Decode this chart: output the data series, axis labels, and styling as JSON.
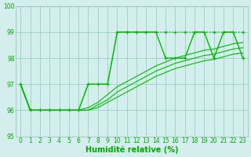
{
  "xlabel": "Humidité relative (%)",
  "xlim": [
    -0.5,
    23.5
  ],
  "ylim": [
    95,
    100
  ],
  "yticks": [
    95,
    96,
    97,
    98,
    99,
    100
  ],
  "xticks": [
    0,
    1,
    2,
    3,
    4,
    5,
    6,
    7,
    8,
    9,
    10,
    11,
    12,
    13,
    14,
    15,
    16,
    17,
    18,
    19,
    20,
    21,
    22,
    23
  ],
  "bg_color": "#d4eeee",
  "grid_color": "#88ccbb",
  "line_color": "#00bb00",
  "lines": [
    {
      "x": [
        0,
        1,
        2,
        3,
        4,
        5,
        6,
        7,
        8,
        9,
        10,
        11,
        12,
        13,
        14,
        15,
        16,
        17,
        18,
        19,
        20,
        21,
        22,
        23
      ],
      "y": [
        97,
        96,
        96,
        96,
        96,
        96,
        96,
        97,
        97,
        97,
        99,
        99,
        99,
        99,
        99,
        99,
        99,
        99,
        99,
        99,
        99,
        99,
        99,
        99
      ],
      "style": ":",
      "marker": "+",
      "lw": 1.0
    },
    {
      "x": [
        0,
        1,
        2,
        3,
        4,
        5,
        6,
        7,
        8,
        9,
        10,
        11,
        12,
        13,
        14,
        15,
        16,
        17,
        18,
        19,
        20,
        21,
        22,
        23
      ],
      "y": [
        97,
        96,
        96,
        96,
        96,
        96,
        96,
        97,
        97,
        97,
        99,
        99,
        99,
        99,
        99,
        98,
        98,
        98,
        99,
        99,
        98,
        99,
        99,
        98
      ],
      "style": "-",
      "marker": "+",
      "lw": 1.0
    },
    {
      "x": [
        0,
        1,
        2,
        3,
        4,
        5,
        6,
        7,
        8,
        9,
        10,
        11,
        12,
        13,
        14,
        15,
        16,
        17,
        18,
        19,
        20,
        21,
        22,
        23
      ],
      "y": [
        97,
        96,
        96,
        96,
        96,
        96,
        96,
        96.1,
        96.3,
        96.6,
        96.9,
        97.1,
        97.3,
        97.5,
        97.7,
        97.85,
        98.0,
        98.1,
        98.2,
        98.3,
        98.35,
        98.45,
        98.55,
        98.6
      ],
      "style": "-",
      "marker": null,
      "lw": 0.8
    },
    {
      "x": [
        0,
        1,
        2,
        3,
        4,
        5,
        6,
        7,
        8,
        9,
        10,
        11,
        12,
        13,
        14,
        15,
        16,
        17,
        18,
        19,
        20,
        21,
        22,
        23
      ],
      "y": [
        97,
        96,
        96,
        96,
        96,
        96,
        96,
        96.0,
        96.2,
        96.4,
        96.7,
        96.9,
        97.1,
        97.3,
        97.5,
        97.65,
        97.8,
        97.9,
        98.0,
        98.1,
        98.15,
        98.25,
        98.35,
        98.4
      ],
      "style": "-",
      "marker": null,
      "lw": 0.8
    },
    {
      "x": [
        0,
        1,
        2,
        3,
        4,
        5,
        6,
        7,
        8,
        9,
        10,
        11,
        12,
        13,
        14,
        15,
        16,
        17,
        18,
        19,
        20,
        21,
        22,
        23
      ],
      "y": [
        97,
        96,
        96,
        96,
        96,
        96,
        96,
        96.0,
        96.1,
        96.3,
        96.5,
        96.7,
        96.9,
        97.1,
        97.3,
        97.45,
        97.6,
        97.7,
        97.8,
        97.9,
        97.95,
        98.05,
        98.15,
        98.2
      ],
      "style": "-",
      "marker": null,
      "lw": 0.8
    }
  ]
}
